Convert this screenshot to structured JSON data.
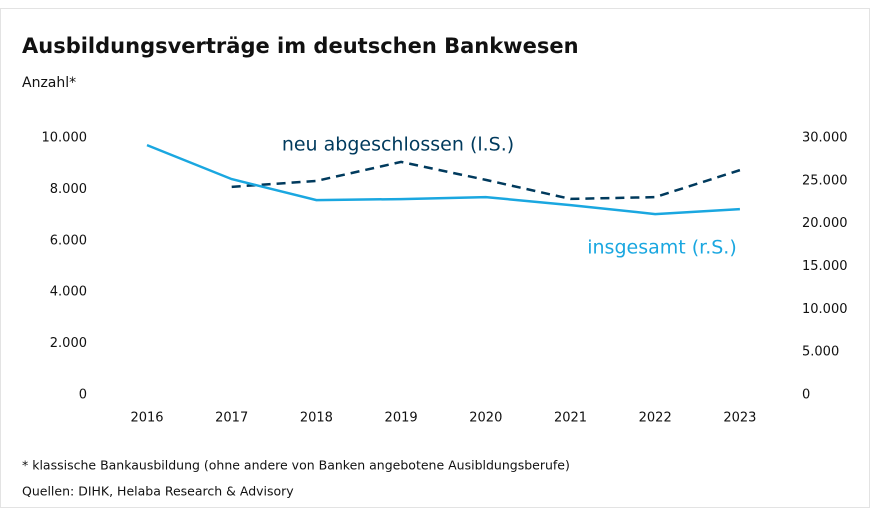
{
  "chart_data": {
    "type": "line",
    "title": "Ausbildungsverträge im deutschen Bankwesen",
    "ylabel": "Anzahl*",
    "categories": [
      "2016",
      "2017",
      "2018",
      "2019",
      "2020",
      "2021",
      "2022",
      "2023"
    ],
    "series": [
      {
        "name": "neu abgeschlossen (l.S.)",
        "color": "#003a5d",
        "dashed": true,
        "values": [
          null,
          8100,
          8330,
          9070,
          8370,
          7630,
          7700,
          8750
        ]
      },
      {
        "name": "insgesamt (r.S.)",
        "color": "#1aa7e0",
        "axis": "y2",
        "values": [
          29170,
          25200,
          22750,
          22870,
          23100,
          22170,
          21120,
          21700
        ]
      }
    ],
    "ylim": [
      0,
      10000
    ],
    "yticks": [
      0,
      {
        "value": 2000,
        "label": "2.000"
      },
      {
        "value": 4000,
        "label": "4.000"
      },
      {
        "value": 6000,
        "label": "6.000"
      },
      {
        "value": 8000,
        "label": "8.000"
      },
      {
        "value": 10000,
        "label": "10.000"
      }
    ],
    "y2lim": [
      0,
      30000
    ],
    "y2ticks": [
      0,
      {
        "value": 5000,
        "label": "5.000"
      },
      {
        "value": 10000,
        "label": "10.000"
      },
      {
        "value": 15000,
        "label": "15.000"
      },
      {
        "value": 20000,
        "label": "20.000"
      },
      {
        "value": 25000,
        "label": "25.000"
      },
      {
        "value": 30000,
        "label": "30.000"
      }
    ],
    "grid": false,
    "footnote": "* klassische Bankausbildung (ohne andere von Banken angebotene Ausibldungsberufe)",
    "source": "Quellen: DIHK, Helaba Research & Advisory"
  }
}
